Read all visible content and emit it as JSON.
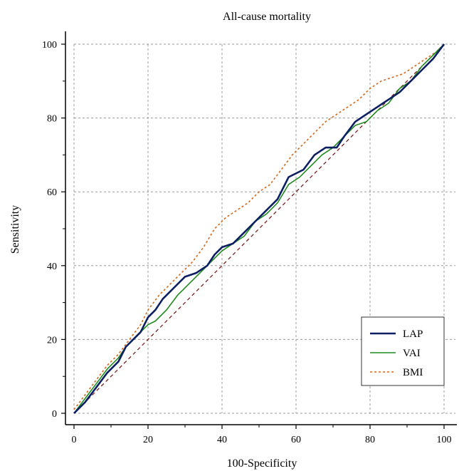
{
  "chart_data": {
    "type": "line",
    "title": "All-cause mortality",
    "xlabel": "100-Specificity",
    "ylabel": "Sensitivity",
    "xlim": [
      0,
      100
    ],
    "ylim": [
      0,
      100
    ],
    "xticks": [
      "0",
      "20",
      "40",
      "60",
      "80",
      "100"
    ],
    "yticks": [
      "0",
      "20",
      "40",
      "60",
      "80",
      "100"
    ],
    "grid": true,
    "legend_position": "bottom-right",
    "series": [
      {
        "name": "LAP",
        "color": "#0d1f63",
        "style": "solid",
        "points": [
          [
            0,
            0
          ],
          [
            3,
            3
          ],
          [
            6,
            7
          ],
          [
            9,
            11
          ],
          [
            12,
            14
          ],
          [
            14,
            18
          ],
          [
            16,
            20
          ],
          [
            18,
            22
          ],
          [
            20,
            26
          ],
          [
            22,
            28
          ],
          [
            24,
            31
          ],
          [
            27,
            34
          ],
          [
            30,
            37
          ],
          [
            33,
            38
          ],
          [
            36,
            40
          ],
          [
            38,
            43
          ],
          [
            40,
            45
          ],
          [
            43,
            46
          ],
          [
            46,
            49
          ],
          [
            49,
            52
          ],
          [
            52,
            55
          ],
          [
            55,
            58
          ],
          [
            58,
            64
          ],
          [
            62,
            66
          ],
          [
            65,
            70
          ],
          [
            68,
            72
          ],
          [
            71,
            72
          ],
          [
            73,
            75
          ],
          [
            76,
            79
          ],
          [
            79,
            81
          ],
          [
            82,
            83
          ],
          [
            85,
            85
          ],
          [
            88,
            87
          ],
          [
            91,
            90
          ],
          [
            94,
            93
          ],
          [
            97,
            96
          ],
          [
            100,
            100
          ]
        ]
      },
      {
        "name": "VAI",
        "color": "#1f8a1f",
        "style": "solid",
        "points": [
          [
            0,
            0
          ],
          [
            3,
            4
          ],
          [
            6,
            8
          ],
          [
            9,
            12
          ],
          [
            12,
            15
          ],
          [
            14,
            18
          ],
          [
            16,
            20
          ],
          [
            18,
            22
          ],
          [
            20,
            24
          ],
          [
            22,
            25
          ],
          [
            25,
            28
          ],
          [
            28,
            32
          ],
          [
            31,
            35
          ],
          [
            34,
            38
          ],
          [
            37,
            41
          ],
          [
            40,
            44
          ],
          [
            43,
            46
          ],
          [
            46,
            48
          ],
          [
            49,
            52
          ],
          [
            52,
            54
          ],
          [
            55,
            57
          ],
          [
            58,
            62
          ],
          [
            61,
            64
          ],
          [
            64,
            67
          ],
          [
            67,
            70
          ],
          [
            70,
            72
          ],
          [
            73,
            75
          ],
          [
            76,
            78
          ],
          [
            79,
            79
          ],
          [
            82,
            82
          ],
          [
            85,
            84
          ],
          [
            88,
            88
          ],
          [
            91,
            90
          ],
          [
            94,
            94
          ],
          [
            97,
            97
          ],
          [
            100,
            100
          ]
        ]
      },
      {
        "name": "BMI",
        "color": "#d2691e",
        "style": "dotted",
        "points": [
          [
            0,
            1
          ],
          [
            3,
            5
          ],
          [
            6,
            9
          ],
          [
            9,
            13
          ],
          [
            12,
            16
          ],
          [
            15,
            20
          ],
          [
            18,
            24
          ],
          [
            20,
            28
          ],
          [
            23,
            32
          ],
          [
            26,
            35
          ],
          [
            29,
            38
          ],
          [
            32,
            41
          ],
          [
            35,
            45
          ],
          [
            38,
            50
          ],
          [
            41,
            53
          ],
          [
            44,
            55
          ],
          [
            47,
            57
          ],
          [
            50,
            60
          ],
          [
            53,
            62
          ],
          [
            56,
            66
          ],
          [
            59,
            70
          ],
          [
            62,
            73
          ],
          [
            65,
            76
          ],
          [
            68,
            79
          ],
          [
            71,
            81
          ],
          [
            74,
            83
          ],
          [
            77,
            85
          ],
          [
            80,
            88
          ],
          [
            83,
            90
          ],
          [
            86,
            91
          ],
          [
            89,
            92
          ],
          [
            92,
            94
          ],
          [
            95,
            96
          ],
          [
            98,
            98
          ],
          [
            100,
            100
          ]
        ]
      }
    ],
    "reference_line": {
      "color": "#7a1f1f",
      "style": "dashed",
      "points": [
        [
          0,
          0
        ],
        [
          100,
          100
        ]
      ]
    }
  }
}
